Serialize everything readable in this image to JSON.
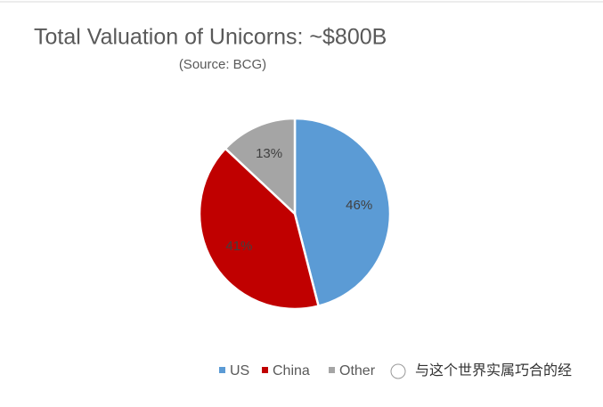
{
  "chart_data": {
    "type": "pie",
    "title": "Total Valuation of Unicorns: ~$800B",
    "subtitle": "(Source: BCG)",
    "categories": [
      "US",
      "China",
      "Other"
    ],
    "values": [
      46,
      41,
      13
    ],
    "value_labels": [
      "46%",
      "41%",
      "13%"
    ],
    "colors": [
      "#5b9bd5",
      "#c00000",
      "#a5a5a5"
    ],
    "legend": "bottom"
  },
  "watermark": "与这个世界实属巧合的经"
}
